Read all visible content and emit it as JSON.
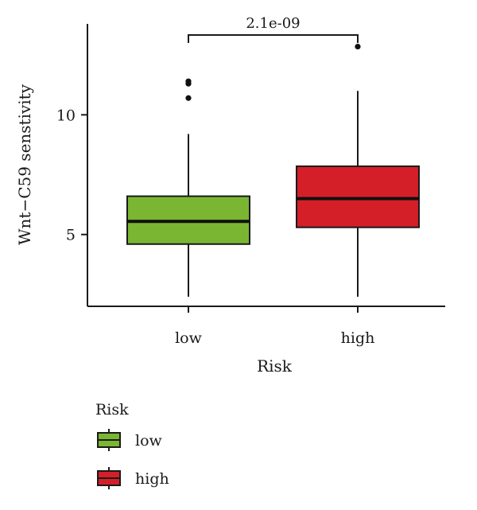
{
  "chart_data": {
    "type": "box",
    "xlabel": "Risk",
    "ylabel": "Wnt−C59 senstivity",
    "categories": [
      "low",
      "high"
    ],
    "yticks": [
      5,
      10
    ],
    "ylim": [
      2.0,
      13.8
    ],
    "boxes": [
      {
        "name": "low",
        "whisker_low": 2.4,
        "q1": 4.6,
        "median": 5.55,
        "q3": 6.6,
        "whisker_high": 9.2,
        "outliers": [
          10.7,
          11.3,
          11.4
        ],
        "color": "#7ab632"
      },
      {
        "name": "high",
        "whisker_low": 2.4,
        "q1": 5.3,
        "median": 6.5,
        "q3": 7.85,
        "whisker_high": 11.0,
        "outliers": [
          12.85
        ],
        "color": "#d51f28"
      }
    ],
    "comparison": {
      "label": "2.1e-09",
      "between": [
        "low",
        "high"
      ]
    },
    "legend": {
      "title": "Risk",
      "entries": [
        "low",
        "high"
      ],
      "placement": "bottom-left"
    }
  }
}
